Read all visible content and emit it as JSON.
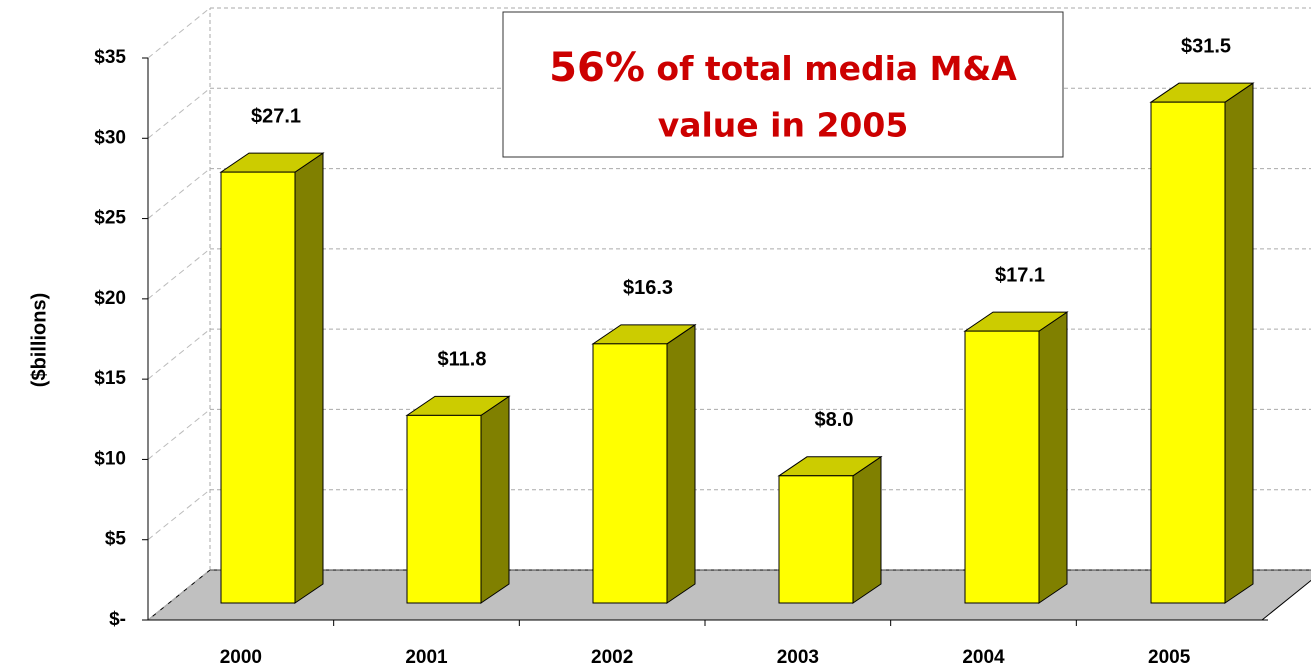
{
  "chart_data": {
    "type": "bar3d",
    "y_axis_label": "($billions)",
    "annotation": {
      "highlight": "56%",
      "lines": [
        "of total media M&A",
        "value in 2005"
      ]
    },
    "categories": [
      "2000",
      "2001",
      "2002",
      "2003",
      "2004",
      "2005"
    ],
    "values": [
      27.1,
      11.8,
      16.3,
      8.0,
      17.1,
      31.5
    ],
    "value_labels": [
      "$27.1",
      "$11.8",
      "$16.3",
      "$8.0",
      "$17.1",
      "$31.5"
    ],
    "colors": {
      "front": "#ffff00",
      "top": "#cccc00",
      "side": "#808000",
      "floor": "#c0c0c0"
    },
    "ylim": [
      0,
      35
    ],
    "yticks": [
      {
        "value": 0,
        "label": "$-"
      },
      {
        "value": 5,
        "label": "$5"
      },
      {
        "value": 10,
        "label": "$10"
      },
      {
        "value": 15,
        "label": "$15"
      },
      {
        "value": 20,
        "label": "$20"
      },
      {
        "value": 25,
        "label": "$25"
      },
      {
        "value": 30,
        "label": "$30"
      },
      {
        "value": 35,
        "label": "$35"
      }
    ],
    "grid": true
  }
}
